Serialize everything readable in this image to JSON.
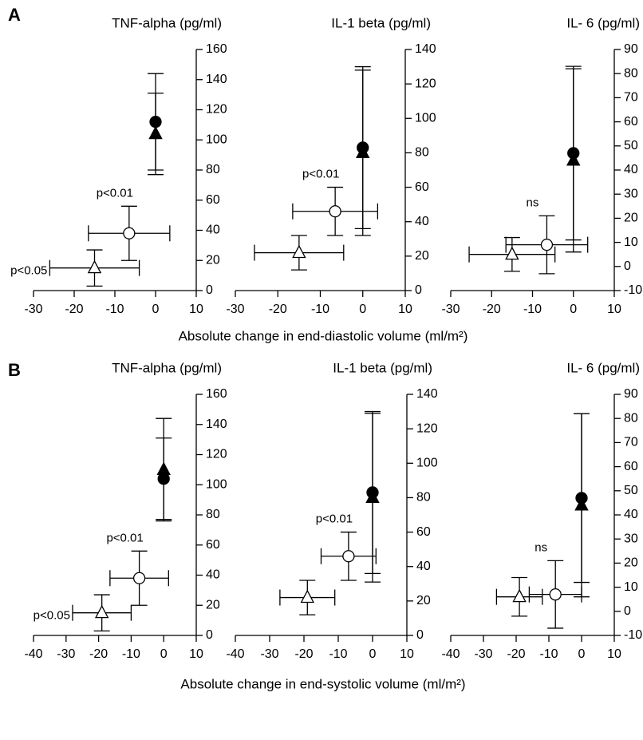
{
  "rows": [
    {
      "label": "A",
      "x_label": "Absolute change in end-diastolic volume (ml/m²)"
    },
    {
      "label": "B",
      "x_label": "Absolute change in end-systolic volume (ml/m²)"
    }
  ],
  "chart_data": [
    {
      "type": "scatter",
      "title": "TNF-alpha (pg/ml)",
      "xlim": [
        -30,
        10
      ],
      "xticks": [
        -30,
        -20,
        -10,
        0,
        10
      ],
      "ylim": [
        0,
        160
      ],
      "yticks": [
        0,
        20,
        40,
        60,
        80,
        100,
        120,
        140,
        160
      ],
      "color": "#000000",
      "points": [
        {
          "marker": "circle",
          "filled": true,
          "x": 0,
          "y": 112,
          "xerr": 0,
          "yerr": 32
        },
        {
          "marker": "triangle",
          "filled": true,
          "x": 0,
          "y": 104,
          "xerr": 0,
          "yerr": 27
        },
        {
          "marker": "circle",
          "filled": false,
          "x": -6.5,
          "y": 38,
          "xerr": 10,
          "yerr": 18,
          "label": "p<0.01"
        },
        {
          "marker": "triangle",
          "filled": false,
          "x": -15,
          "y": 15,
          "xerr": 11,
          "yerr": 12,
          "label": "p<0.05"
        }
      ]
    },
    {
      "type": "scatter",
      "title": "IL-1 beta (pg/ml)",
      "xlim": [
        -30,
        10
      ],
      "xticks": [
        -30,
        -20,
        -10,
        0,
        10
      ],
      "ylim": [
        0,
        140
      ],
      "yticks": [
        0,
        20,
        40,
        60,
        80,
        100,
        120,
        140
      ],
      "color": "#000000",
      "points": [
        {
          "marker": "circle",
          "filled": true,
          "x": 0,
          "y": 83,
          "xerr": 0,
          "yerr": 47
        },
        {
          "marker": "triangle",
          "filled": true,
          "x": 0,
          "y": 80,
          "xerr": 0,
          "yerr": 48
        },
        {
          "marker": "circle",
          "filled": false,
          "x": -6.5,
          "y": 46,
          "xerr": 10,
          "yerr": 14,
          "label": "p<0.01"
        },
        {
          "marker": "triangle",
          "filled": false,
          "x": -15,
          "y": 22,
          "xerr": 10.5,
          "yerr": 10
        }
      ]
    },
    {
      "type": "scatter",
      "title": "IL- 6 (pg/ml)",
      "xlim": [
        -30,
        10
      ],
      "xticks": [
        -30,
        -20,
        -10,
        0,
        10
      ],
      "ylim": [
        -10,
        90
      ],
      "yticks": [
        -10,
        0,
        10,
        20,
        30,
        40,
        50,
        60,
        70,
        80,
        90
      ],
      "color": "#000000",
      "points": [
        {
          "marker": "circle",
          "filled": true,
          "x": 0,
          "y": 47,
          "xerr": 0,
          "yerr": 36
        },
        {
          "marker": "triangle",
          "filled": true,
          "x": 0,
          "y": 44,
          "xerr": 0,
          "yerr": 38
        },
        {
          "marker": "circle",
          "filled": false,
          "x": -6.5,
          "y": 9,
          "xerr": 10,
          "yerr": 12,
          "label": "ns"
        },
        {
          "marker": "triangle",
          "filled": false,
          "x": -15,
          "y": 5,
          "xerr": 10.5,
          "yerr": 7
        }
      ]
    },
    {
      "type": "scatter",
      "title": "TNF-alpha (pg/ml)",
      "xlim": [
        -40,
        10
      ],
      "xticks": [
        -40,
        -30,
        -20,
        -10,
        0,
        10
      ],
      "ylim": [
        0,
        160
      ],
      "yticks": [
        0,
        20,
        40,
        60,
        80,
        100,
        120,
        140,
        160
      ],
      "color": "#000000",
      "points": [
        {
          "marker": "triangle",
          "filled": true,
          "x": 0,
          "y": 110,
          "xerr": 0,
          "yerr": 34
        },
        {
          "marker": "circle",
          "filled": true,
          "x": 0,
          "y": 104,
          "xerr": 0,
          "yerr": 27
        },
        {
          "marker": "circle",
          "filled": false,
          "x": -7.5,
          "y": 38,
          "xerr": 9,
          "yerr": 18,
          "label": "p<0.01"
        },
        {
          "marker": "triangle",
          "filled": false,
          "x": -19,
          "y": 15,
          "xerr": 9,
          "yerr": 12,
          "label": "p<0.05"
        }
      ]
    },
    {
      "type": "scatter",
      "title": "IL-1 beta (pg/ml)",
      "xlim": [
        -40,
        10
      ],
      "xticks": [
        -40,
        -30,
        -20,
        -10,
        0,
        10
      ],
      "ylim": [
        0,
        140
      ],
      "yticks": [
        0,
        20,
        40,
        60,
        80,
        100,
        120,
        140
      ],
      "color": "#000000",
      "points": [
        {
          "marker": "circle",
          "filled": true,
          "x": 0,
          "y": 83,
          "xerr": 0,
          "yerr": 47
        },
        {
          "marker": "triangle",
          "filled": true,
          "x": 0,
          "y": 80,
          "xerr": 0,
          "yerr": 49
        },
        {
          "marker": "circle",
          "filled": false,
          "x": -7,
          "y": 46,
          "xerr": 8,
          "yerr": 14,
          "label": "p<0.01"
        },
        {
          "marker": "triangle",
          "filled": false,
          "x": -19,
          "y": 22,
          "xerr": 8,
          "yerr": 10
        }
      ]
    },
    {
      "type": "scatter",
      "title": "IL- 6 (pg/ml)",
      "xlim": [
        -40,
        10
      ],
      "xticks": [
        -40,
        -30,
        -20,
        -10,
        0,
        10
      ],
      "ylim": [
        -10,
        90
      ],
      "yticks": [
        -10,
        0,
        10,
        20,
        30,
        40,
        50,
        60,
        70,
        80,
        90
      ],
      "color": "#000000",
      "points": [
        {
          "marker": "circle",
          "filled": true,
          "x": 0,
          "y": 47,
          "xerr": 0,
          "yerr": 35
        },
        {
          "marker": "triangle",
          "filled": true,
          "x": 0,
          "y": 44,
          "xerr": 0,
          "yerr": 38
        },
        {
          "marker": "circle",
          "filled": false,
          "x": -8,
          "y": 7,
          "xerr": 8,
          "yerr": 14,
          "label": "ns"
        },
        {
          "marker": "triangle",
          "filled": false,
          "x": -19,
          "y": 6,
          "xerr": 7,
          "yerr": 8
        }
      ]
    }
  ]
}
